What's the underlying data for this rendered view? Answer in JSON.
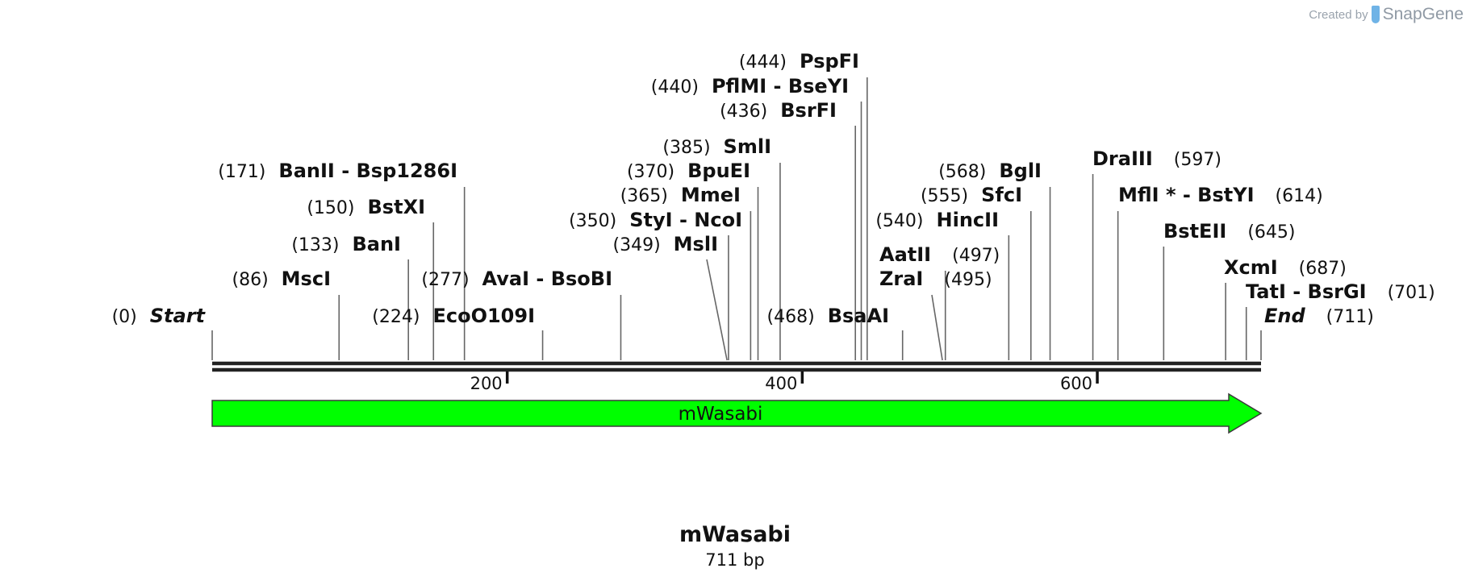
{
  "credit": {
    "prefix": "Created by",
    "brand": "SnapGene"
  },
  "sequence": {
    "name": "mWasabi",
    "length_label": "711 bp",
    "length_bp": 711
  },
  "axis": {
    "ticks": [
      200,
      400,
      600
    ]
  },
  "feature": {
    "label": "mWasabi",
    "start": 0,
    "end": 711,
    "color": "#00ff00",
    "direction": "forward"
  },
  "sites": [
    {
      "pos": "(0)",
      "names": [
        "Start"
      ],
      "italic": true,
      "bp": 0
    },
    {
      "pos": "(86)",
      "names": [
        "MscI"
      ],
      "bp": 86
    },
    {
      "pos": "(133)",
      "names": [
        "BanI"
      ],
      "bp": 133
    },
    {
      "pos": "(150)",
      "names": [
        "BstXI"
      ],
      "bp": 150
    },
    {
      "pos": "(171)",
      "names": [
        "BanII",
        "Bsp1286I"
      ],
      "bp": 171
    },
    {
      "pos": "(224)",
      "names": [
        "EcoO109I"
      ],
      "bp": 224
    },
    {
      "pos": "(277)",
      "names": [
        "AvaI",
        "BsoBI"
      ],
      "bp": 277
    },
    {
      "pos": "(349)",
      "names": [
        "MslI"
      ],
      "bp": 349
    },
    {
      "pos": "(350)",
      "names": [
        "StyI",
        "NcoI"
      ],
      "bp": 350
    },
    {
      "pos": "(365)",
      "names": [
        "MmeI"
      ],
      "bp": 365
    },
    {
      "pos": "(370)",
      "names": [
        "BpuEI"
      ],
      "bp": 370
    },
    {
      "pos": "(385)",
      "names": [
        "SmlI"
      ],
      "bp": 385
    },
    {
      "pos": "(436)",
      "names": [
        "BsrFI"
      ],
      "bp": 436
    },
    {
      "pos": "(440)",
      "names": [
        "PflMI",
        "BseYI"
      ],
      "bp": 440
    },
    {
      "pos": "(444)",
      "names": [
        "PspFI"
      ],
      "bp": 444
    },
    {
      "pos": "(468)",
      "names": [
        "BsaAI"
      ],
      "bp": 468
    },
    {
      "pos": "(495)",
      "names": [
        "ZraI"
      ],
      "bp": 495
    },
    {
      "pos": "(497)",
      "names": [
        "AatII"
      ],
      "bp": 497
    },
    {
      "pos": "(540)",
      "names": [
        "HincII"
      ],
      "bp": 540
    },
    {
      "pos": "(555)",
      "names": [
        "SfcI"
      ],
      "bp": 555
    },
    {
      "pos": "(568)",
      "names": [
        "BglI"
      ],
      "bp": 568
    },
    {
      "pos": "(597)",
      "names": [
        "DraIII"
      ],
      "bp": 597
    },
    {
      "pos": "(614)",
      "names": [
        "MflI *",
        "BstYI"
      ],
      "bp": 614
    },
    {
      "pos": "(645)",
      "names": [
        "BstEII"
      ],
      "bp": 645
    },
    {
      "pos": "(687)",
      "names": [
        "XcmI"
      ],
      "bp": 687
    },
    {
      "pos": "(701)",
      "names": [
        "TatI",
        "BsrGI"
      ],
      "bp": 701
    },
    {
      "pos": "(711)",
      "names": [
        "End"
      ],
      "italic": true,
      "bp": 711
    }
  ]
}
